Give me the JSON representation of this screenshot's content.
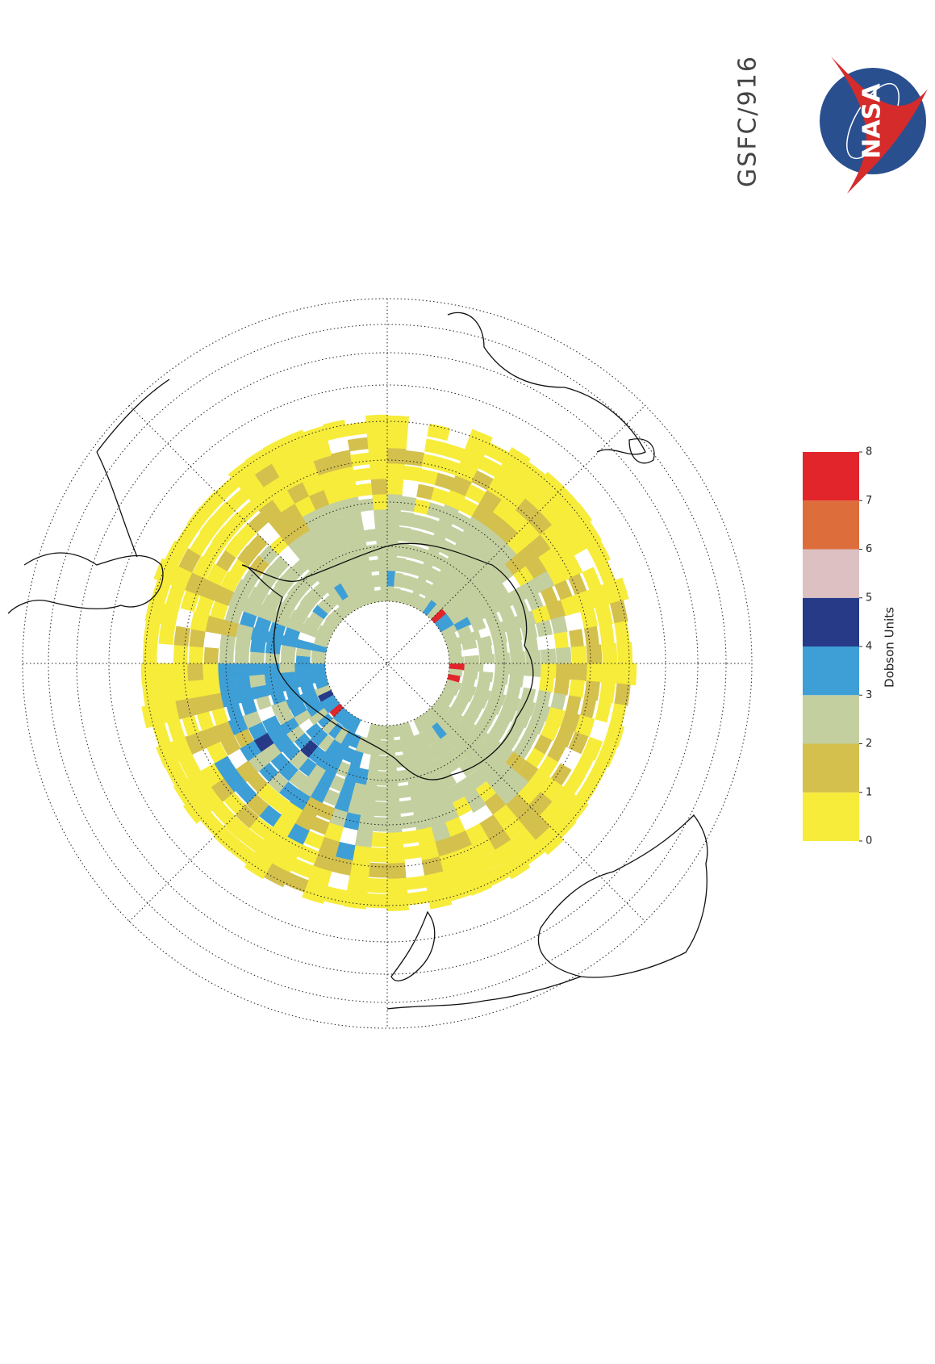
{
  "header": {
    "label": "GSFC/916"
  },
  "logo": {
    "text": "NASA"
  },
  "colorbar": {
    "title": "Dobson Units",
    "ticks": [
      0,
      1,
      2,
      3,
      4,
      5,
      6,
      7,
      8
    ],
    "colors": [
      "#f7ec3a",
      "#d4c04c",
      "#c4cf9f",
      "#3d9fd6",
      "#263a88",
      "#dcc0c2",
      "#dd6e3c",
      "#e2252b"
    ]
  }
}
